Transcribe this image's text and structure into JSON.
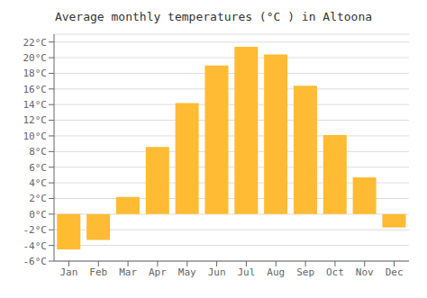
{
  "chart_data": {
    "type": "bar",
    "title": "Average monthly temperatures (°C ) in Altoona",
    "categories": [
      "Jan",
      "Feb",
      "Mar",
      "Apr",
      "May",
      "Jun",
      "Jul",
      "Aug",
      "Sep",
      "Oct",
      "Nov",
      "Dec"
    ],
    "values": [
      -4.5,
      -3.3,
      2.2,
      8.6,
      14.2,
      19.0,
      21.4,
      20.4,
      16.4,
      10.1,
      4.7,
      -1.7
    ],
    "color": "#FFBB33",
    "ylim": [
      -6,
      23
    ],
    "yticks": [
      {
        "value": -6,
        "label": "-6°C"
      },
      {
        "value": -4,
        "label": "-4°C"
      },
      {
        "value": -2,
        "label": "-2°C"
      },
      {
        "value": 0,
        "label": "0°C"
      },
      {
        "value": 2,
        "label": "2°C"
      },
      {
        "value": 4,
        "label": "4°C"
      },
      {
        "value": 6,
        "label": "6°C"
      },
      {
        "value": 8,
        "label": "8°C"
      },
      {
        "value": 10,
        "label": "10°C"
      },
      {
        "value": 12,
        "label": "12°C"
      },
      {
        "value": 14,
        "label": "14°C"
      },
      {
        "value": 16,
        "label": "16°C"
      },
      {
        "value": 18,
        "label": "18°C"
      },
      {
        "value": 20,
        "label": "20°C"
      },
      {
        "value": 22,
        "label": "22°C"
      }
    ],
    "grid": true
  }
}
